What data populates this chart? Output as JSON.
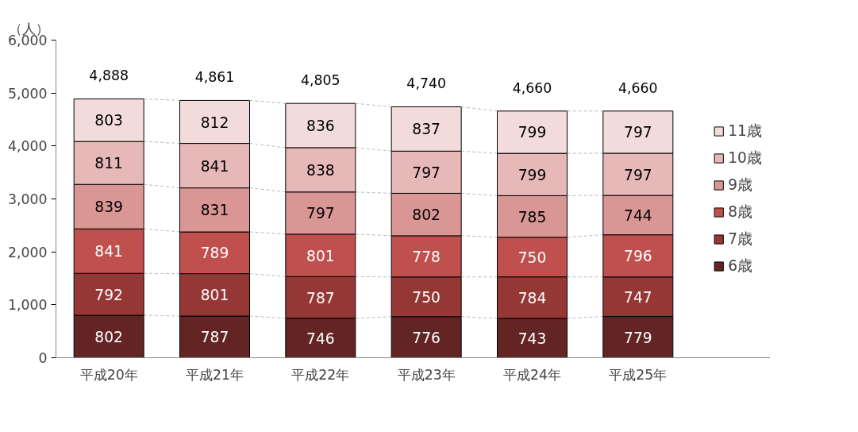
{
  "chart_data": {
    "type": "bar",
    "stacked": true,
    "ylabel": "（人）",
    "categories": [
      "平成20年",
      "平成21年",
      "平成22年",
      "平成23年",
      "平成24年",
      "平成25年"
    ],
    "series": [
      {
        "name": "6歳",
        "color": "#632523",
        "values": [
          802,
          787,
          746,
          776,
          743,
          779
        ]
      },
      {
        "name": "7歳",
        "color": "#953735",
        "values": [
          792,
          801,
          787,
          750,
          784,
          747
        ]
      },
      {
        "name": "8歳",
        "color": "#c0504d",
        "values": [
          841,
          789,
          801,
          778,
          750,
          796
        ]
      },
      {
        "name": "9歳",
        "color": "#d99694",
        "values": [
          839,
          831,
          797,
          802,
          785,
          744
        ]
      },
      {
        "name": "10歳",
        "color": "#e6b9b8",
        "values": [
          811,
          841,
          838,
          797,
          799,
          797
        ]
      },
      {
        "name": "11歳",
        "color": "#f2dcdb",
        "values": [
          803,
          812,
          836,
          837,
          799,
          797
        ]
      }
    ],
    "ylim": [
      0,
      6000
    ],
    "yticks": [
      0,
      {
        "value": 1000,
        "label": "1,000"
      },
      {
        "value": 2000,
        "label": "2,000"
      },
      {
        "value": 3000,
        "label": "3,000"
      },
      {
        "value": 4000,
        "label": "4,000"
      },
      {
        "value": 5000,
        "label": "5,000"
      },
      {
        "value": 6000,
        "label": "6,000"
      }
    ],
    "data_labels": true,
    "totals": [
      "4,888",
      "4,861",
      "4,805",
      "4,740",
      "4,660",
      "4,660"
    ],
    "legend": "right",
    "grid": false
  }
}
